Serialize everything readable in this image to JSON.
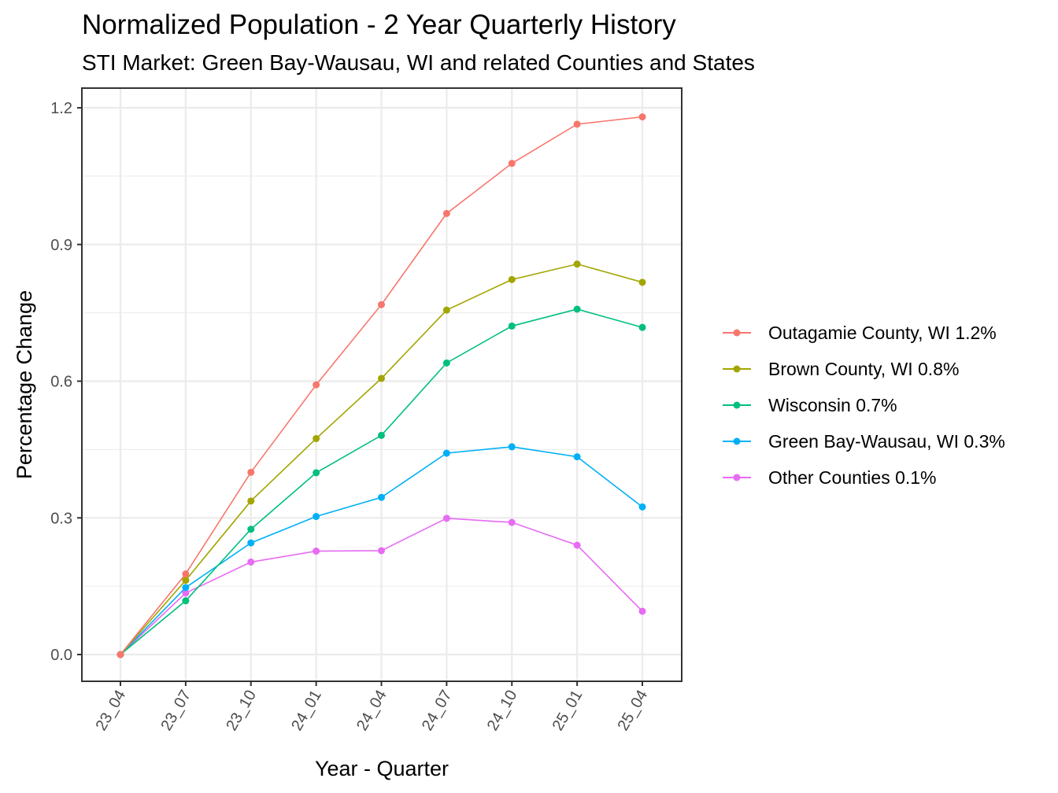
{
  "chart_data": {
    "type": "line",
    "title": "Normalized Population - 2 Year Quarterly History",
    "subtitle": "STI Market: Green Bay-Wausau, WI and related Counties and States",
    "xlabel": "Year - Quarter",
    "ylabel": "Percentage Change",
    "x": [
      "23_04",
      "23_07",
      "23_10",
      "24_01",
      "24_04",
      "24_07",
      "24_10",
      "25_01",
      "25_04"
    ],
    "ylim": [
      -0.06,
      1.22
    ],
    "yticks": [
      0.0,
      0.3,
      0.6,
      0.9,
      1.2
    ],
    "ytick_labels": [
      "0.0",
      "0.3",
      "0.6",
      "0.9",
      "1.2"
    ],
    "grid": true,
    "legend_position": "right",
    "series": [
      {
        "name": "Outagamie County, WI 1.2%",
        "color": "#F8766D",
        "values": [
          0.0,
          0.177,
          0.4,
          0.592,
          0.768,
          0.968,
          1.078,
          1.164,
          1.18
        ]
      },
      {
        "name": "Brown County, WI 0.8%",
        "color": "#A3A500",
        "values": [
          0.0,
          0.163,
          0.337,
          0.474,
          0.606,
          0.756,
          0.823,
          0.857,
          0.817
        ]
      },
      {
        "name": "Wisconsin 0.7%",
        "color": "#00BF7D",
        "values": [
          0.0,
          0.118,
          0.275,
          0.399,
          0.481,
          0.64,
          0.721,
          0.758,
          0.718
        ]
      },
      {
        "name": "Green Bay-Wausau, WI 0.3%",
        "color": "#00B0F6",
        "values": [
          0.0,
          0.147,
          0.245,
          0.303,
          0.345,
          0.442,
          0.456,
          0.434,
          0.324
        ]
      },
      {
        "name": "Other Counties 0.1%",
        "color": "#E76BF3",
        "values": [
          0.0,
          0.135,
          0.203,
          0.227,
          0.228,
          0.299,
          0.29,
          0.24,
          0.095
        ]
      }
    ]
  }
}
